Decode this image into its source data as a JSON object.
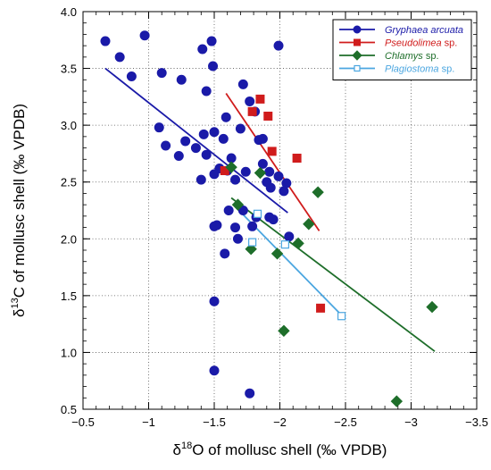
{
  "chart_data": {
    "type": "scatter",
    "xlabel": {
      "prefix": "δ",
      "sup": "18",
      "rest": "O of mollusc shell (‰ VPDB)"
    },
    "ylabel": {
      "prefix": "δ",
      "sup": "13",
      "rest": "C of mollusc shell (‰ VPDB)"
    },
    "xlim": [
      -0.5,
      -3.5
    ],
    "ylim": [
      0.5,
      4.0
    ],
    "x_ticks": [
      -0.5,
      -1.0,
      -1.5,
      -2.0,
      -2.5,
      -3.0,
      -3.5
    ],
    "x_tick_labels": [
      "−0.5",
      "−1",
      "−1.5",
      "−2",
      "−2.5",
      "−3",
      "−3.5"
    ],
    "y_ticks": [
      0.5,
      1.0,
      1.5,
      2.0,
      2.5,
      3.0,
      3.5,
      4.0
    ],
    "y_tick_labels": [
      "0.5",
      "1.0",
      "1.5",
      "2.0",
      "2.5",
      "3.0",
      "3.5",
      "4.0"
    ],
    "grid": "dotted",
    "legend_position": "top-right",
    "series": [
      {
        "name": "Gryphaea arcuata",
        "name_suffix": "",
        "color": "#1a1aa8",
        "marker": "circle",
        "points": [
          [
            -0.67,
            3.74
          ],
          [
            -0.78,
            3.6
          ],
          [
            -0.87,
            3.43
          ],
          [
            -0.97,
            3.79
          ],
          [
            -1.1,
            3.46
          ],
          [
            -1.25,
            3.4
          ],
          [
            -1.41,
            3.67
          ],
          [
            -1.48,
            3.74
          ],
          [
            -1.44,
            3.3
          ],
          [
            -1.49,
            3.52
          ],
          [
            -1.08,
            2.98
          ],
          [
            -1.13,
            2.82
          ],
          [
            -1.23,
            2.73
          ],
          [
            -1.28,
            2.86
          ],
          [
            -1.36,
            2.8
          ],
          [
            -1.4,
            2.52
          ],
          [
            -1.42,
            2.92
          ],
          [
            -1.5,
            2.94
          ],
          [
            -1.44,
            2.74
          ],
          [
            -1.59,
            3.07
          ],
          [
            -1.54,
            2.62
          ],
          [
            -1.57,
            2.88
          ],
          [
            -1.6,
            2.6
          ],
          [
            -1.63,
            2.71
          ],
          [
            -1.66,
            2.52
          ],
          [
            -1.72,
            3.36
          ],
          [
            -1.77,
            3.21
          ],
          [
            -1.7,
            2.97
          ],
          [
            -1.81,
            3.12
          ],
          [
            -1.74,
            2.59
          ],
          [
            -1.84,
            2.87
          ],
          [
            -1.87,
            2.88
          ],
          [
            -1.87,
            2.66
          ],
          [
            -1.9,
            2.5
          ],
          [
            -1.93,
            2.45
          ],
          [
            -1.92,
            2.59
          ],
          [
            -1.99,
            2.55
          ],
          [
            -2.03,
            2.42
          ],
          [
            -2.05,
            2.49
          ],
          [
            -1.99,
            3.7
          ],
          [
            -1.52,
            2.12
          ],
          [
            -1.5,
            2.11
          ],
          [
            -1.61,
            2.25
          ],
          [
            -1.72,
            2.25
          ],
          [
            -1.82,
            2.19
          ],
          [
            -1.92,
            2.19
          ],
          [
            -1.95,
            2.17
          ],
          [
            -1.79,
            2.11
          ],
          [
            -1.66,
            2.1
          ],
          [
            -1.68,
            2.0
          ],
          [
            -2.07,
            2.02
          ],
          [
            -1.58,
            1.87
          ],
          [
            -1.5,
            1.45
          ],
          [
            -1.5,
            0.84
          ],
          [
            -1.77,
            0.64
          ],
          [
            -1.5,
            2.57
          ]
        ],
        "line": [
          [
            -0.67,
            3.5
          ],
          [
            -2.06,
            2.23
          ]
        ]
      },
      {
        "name": "Pseudolimea",
        "name_suffix": " sp.",
        "color": "#d01c1c",
        "marker": "square",
        "points": [
          [
            -1.58,
            2.6
          ],
          [
            -1.79,
            3.12
          ],
          [
            -1.85,
            3.23
          ],
          [
            -1.91,
            3.08
          ],
          [
            -1.94,
            2.77
          ],
          [
            -2.13,
            2.71
          ],
          [
            -2.31,
            1.39
          ]
        ],
        "line": [
          [
            -1.59,
            3.28
          ],
          [
            -2.3,
            2.07
          ]
        ]
      },
      {
        "name": "Chlamys",
        "name_suffix": " sp.",
        "color": "#1e6e2a",
        "marker": "diamond",
        "points": [
          [
            -1.63,
            2.63
          ],
          [
            -1.85,
            2.58
          ],
          [
            -1.68,
            2.3
          ],
          [
            -1.78,
            1.91
          ],
          [
            -1.98,
            1.87
          ],
          [
            -2.03,
            1.19
          ],
          [
            -2.14,
            1.96
          ],
          [
            -2.22,
            2.13
          ],
          [
            -2.29,
            2.41
          ],
          [
            -3.16,
            1.4
          ],
          [
            -2.89,
            0.57
          ]
        ],
        "line": [
          [
            -1.63,
            2.36
          ],
          [
            -3.18,
            1.01
          ]
        ]
      },
      {
        "name": "Plagiostoma",
        "name_suffix": " sp.",
        "color": "#4ba6e0",
        "marker": "open-square",
        "points": [
          [
            -1.79,
            1.97
          ],
          [
            -1.83,
            2.22
          ],
          [
            -2.04,
            1.95
          ],
          [
            -2.47,
            1.32
          ]
        ],
        "line": [
          [
            -1.68,
            2.26
          ],
          [
            -2.46,
            1.34
          ]
        ]
      }
    ]
  }
}
